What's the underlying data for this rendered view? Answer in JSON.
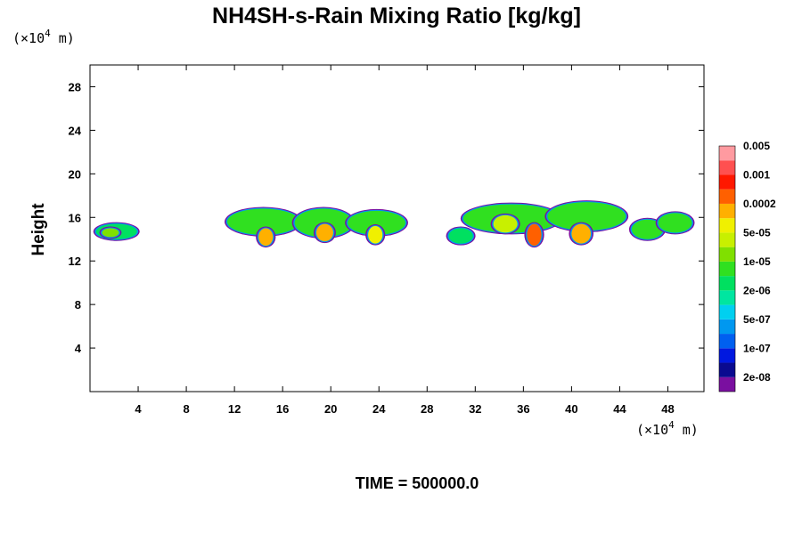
{
  "chart_data": {
    "type": "heatmap",
    "title": "NH4SH-s-Rain Mixing Ratio [kg/kg]",
    "xlabel": "",
    "ylabel": "Height",
    "x_unit_label": "(×10",
    "y_unit_label": "(×10",
    "unit_exponent": "4",
    "unit_suffix": " m)",
    "xlim": [
      0,
      51
    ],
    "ylim": [
      0,
      30
    ],
    "xticks": [
      4,
      8,
      12,
      16,
      20,
      24,
      28,
      32,
      36,
      40,
      44,
      48
    ],
    "yticks": [
      4,
      8,
      12,
      16,
      20,
      24,
      28
    ],
    "footer": "TIME = 500000.0",
    "colorbar": {
      "colors": [
        "#7a0fa0",
        "#0a0a90",
        "#0018e0",
        "#0060f0",
        "#0098f0",
        "#00d0f0",
        "#00e6a0",
        "#00e060",
        "#30e020",
        "#80e000",
        "#c8f000",
        "#f0f000",
        "#ffb000",
        "#ff6000",
        "#ff1800",
        "#ff5050",
        "#ff9aa0"
      ],
      "labels": [
        "2e-08",
        "1e-07",
        "5e-07",
        "2e-06",
        "1e-05",
        "5e-05",
        "0.0002",
        "0.001",
        "0.005"
      ]
    },
    "cells": [
      {
        "x": 0.5,
        "w": 3.4,
        "y": 14.0,
        "h": 1.4,
        "level": 7
      },
      {
        "x": 11.4,
        "w": 6.0,
        "y": 14.4,
        "h": 2.4,
        "level": 8
      },
      {
        "x": 17.0,
        "w": 4.8,
        "y": 14.2,
        "h": 2.6,
        "level": 8
      },
      {
        "x": 21.4,
        "w": 4.8,
        "y": 14.4,
        "h": 2.2,
        "level": 8
      },
      {
        "x": 29.8,
        "w": 2.0,
        "y": 13.6,
        "h": 1.4,
        "level": 7
      },
      {
        "x": 31.0,
        "w": 8.0,
        "y": 14.6,
        "h": 2.6,
        "level": 8
      },
      {
        "x": 38.0,
        "w": 6.5,
        "y": 14.8,
        "h": 2.6,
        "level": 8
      },
      {
        "x": 45.0,
        "w": 2.6,
        "y": 14.0,
        "h": 1.8,
        "level": 8
      },
      {
        "x": 47.2,
        "w": 2.8,
        "y": 14.6,
        "h": 1.8,
        "level": 8
      },
      {
        "x": 14.0,
        "w": 1.2,
        "y": 13.4,
        "h": 1.6,
        "level": 12
      },
      {
        "x": 18.8,
        "w": 1.4,
        "y": 13.8,
        "h": 1.6,
        "level": 12
      },
      {
        "x": 23.1,
        "w": 1.2,
        "y": 13.6,
        "h": 1.6,
        "level": 11
      },
      {
        "x": 36.3,
        "w": 1.2,
        "y": 13.4,
        "h": 2.0,
        "level": 13
      },
      {
        "x": 40.0,
        "w": 1.6,
        "y": 13.6,
        "h": 1.8,
        "level": 12
      },
      {
        "x": 1.0,
        "w": 1.4,
        "y": 14.2,
        "h": 0.8,
        "level": 9
      },
      {
        "x": 33.5,
        "w": 2.0,
        "y": 14.6,
        "h": 1.6,
        "level": 10
      }
    ]
  }
}
